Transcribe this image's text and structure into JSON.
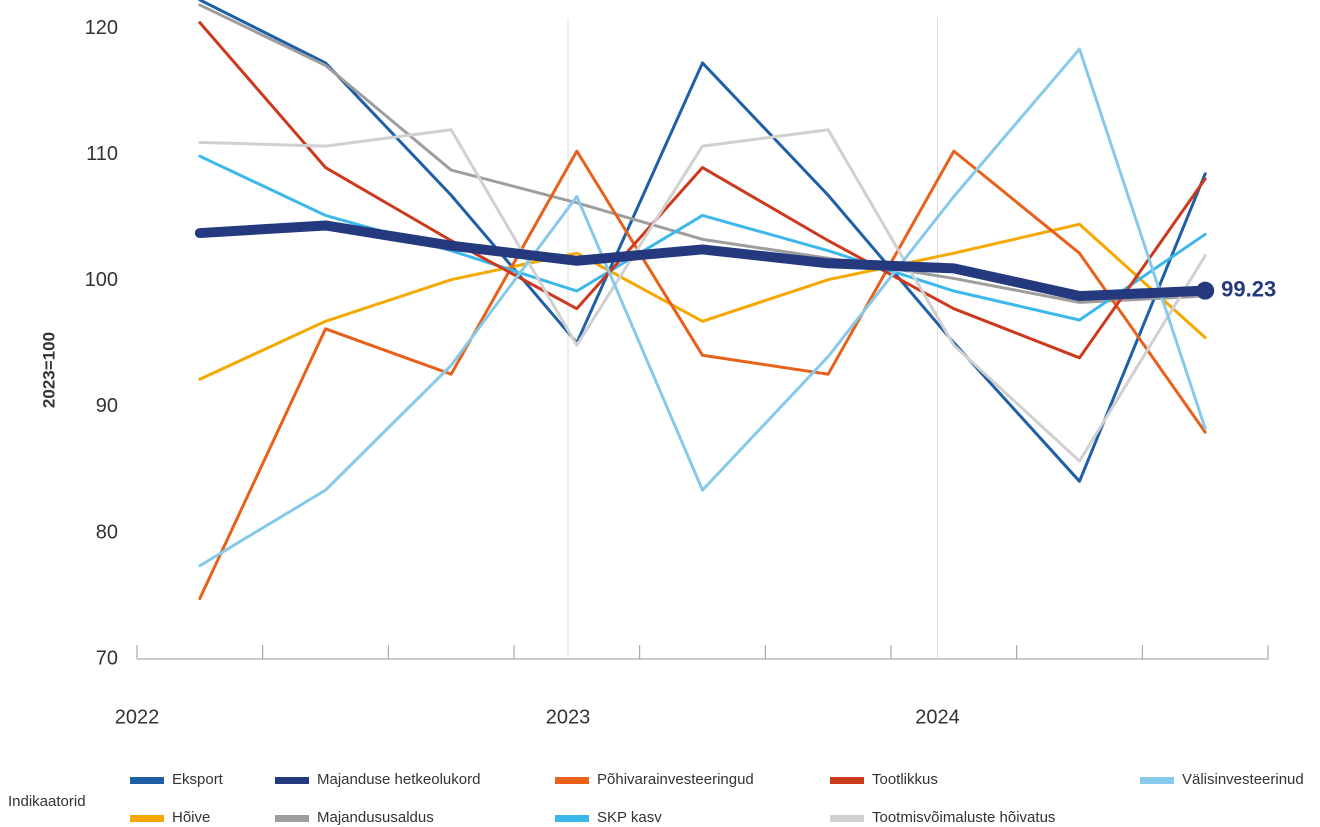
{
  "chart_data": {
    "type": "line",
    "x": [
      0,
      1,
      2,
      3,
      4,
      5,
      6,
      7,
      8
    ],
    "xlim": [
      -0.5,
      8.5
    ],
    "xticks": [
      {
        "value": -0.5,
        "label": "2022"
      },
      {
        "value": 2.93,
        "label": "2023"
      },
      {
        "value": 5.87,
        "label": "2024"
      }
    ],
    "xminorticks": [
      -0.5,
      0.5,
      1.5,
      2.5,
      3.5,
      4.5,
      5.5,
      6.5,
      7.5,
      8.5
    ],
    "xgrid": true,
    "ylim": [
      70,
      121.5
    ],
    "yticks": [
      70,
      80,
      90,
      100,
      110,
      120
    ],
    "ylabel": "2023=100",
    "legend_title": "Indikaatorid",
    "legend_position": "bottom",
    "highlight_series": 2,
    "series": [
      {
        "name": "Eksport",
        "color": "#1f5fa6",
        "values": [
          122.3,
          117.3,
          106.8,
          95.1,
          117.3,
          106.8,
          95.1,
          84.1,
          108.5
        ]
      },
      {
        "name": "Hõive",
        "color": "#f5a800",
        "values": [
          92.2,
          96.8,
          100.1,
          102.2,
          96.8,
          100.1,
          102.2,
          104.5,
          95.5
        ]
      },
      {
        "name": "Majanduse hetkeolukord",
        "color": "#253a7e",
        "values": [
          103.8,
          104.4,
          102.8,
          101.6,
          102.5,
          101.4,
          101.0,
          98.8,
          99.23
        ]
      },
      {
        "name": "Majandususaldus",
        "color": "#9e9e9e",
        "values": [
          121.9,
          117.1,
          108.8,
          106.2,
          103.3,
          101.8,
          100.2,
          98.3,
          98.8
        ]
      },
      {
        "name": "Põhivarainvesteeringud",
        "color": "#e8611a",
        "values": [
          74.8,
          96.2,
          92.6,
          110.3,
          94.1,
          92.6,
          110.3,
          102.2,
          88.0
        ]
      },
      {
        "name": "SKP kasv",
        "color": "#3db8ea",
        "values": [
          109.9,
          105.2,
          102.4,
          99.2,
          105.2,
          102.4,
          99.2,
          96.9,
          103.7
        ]
      },
      {
        "name": "Tootlikkus",
        "color": "#cc3a1e",
        "values": [
          120.5,
          109.0,
          103.2,
          97.8,
          109.0,
          103.2,
          97.8,
          93.9,
          108.1
        ]
      },
      {
        "name": "Tootmisvõimaluste hõivatus",
        "color": "#d0d0d0",
        "values": [
          111.0,
          110.7,
          112.0,
          94.9,
          110.7,
          112.0,
          94.9,
          85.7,
          102.0
        ]
      },
      {
        "name": "Välisinvesteerinud",
        "color": "#86c9ea",
        "values": [
          77.4,
          83.4,
          93.3,
          106.7,
          83.4,
          94.0,
          106.7,
          118.4,
          88.3
        ]
      }
    ]
  }
}
